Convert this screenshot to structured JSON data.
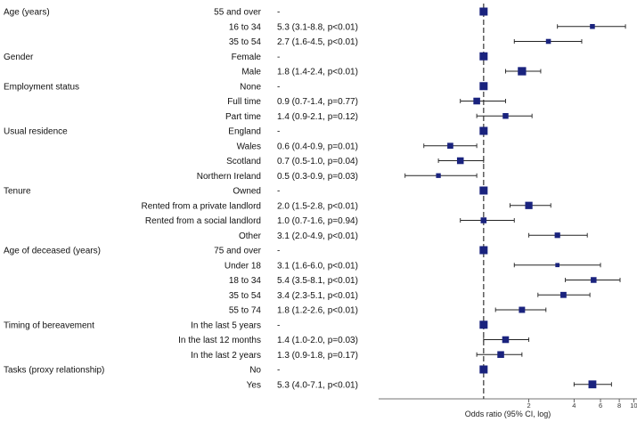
{
  "chart_data": {
    "type": "forest",
    "xlabel": "Odds ratio (95% CI, log)",
    "x_scale": "log",
    "xlim": [
      0.2,
      10.5
    ],
    "reference_line": 1,
    "x_ticks": [
      2,
      4,
      6,
      8,
      10
    ],
    "colors": {
      "marker": "#1a237e",
      "line": "#222222",
      "reference": "#333333"
    },
    "groups": [
      {
        "variable": "Age (years)",
        "rows": [
          {
            "level": "55 and over",
            "label": "-",
            "or": 1,
            "lo": 1,
            "hi": 1,
            "ref": true
          },
          {
            "level": "16 to 34",
            "label": "5.3 (3.1-8.8, p<0.01)",
            "or": 5.3,
            "lo": 3.1,
            "hi": 8.8
          },
          {
            "level": "35 to 54",
            "label": "2.7 (1.6-4.5, p<0.01)",
            "or": 2.7,
            "lo": 1.6,
            "hi": 4.5
          }
        ]
      },
      {
        "variable": "Gender",
        "rows": [
          {
            "level": "Female",
            "label": "-",
            "or": 1,
            "lo": 1,
            "hi": 1,
            "ref": true
          },
          {
            "level": "Male",
            "label": "1.8 (1.4-2.4, p<0.01)",
            "or": 1.8,
            "lo": 1.4,
            "hi": 2.4
          }
        ]
      },
      {
        "variable": "Employment status",
        "rows": [
          {
            "level": "None",
            "label": "-",
            "or": 1,
            "lo": 1,
            "hi": 1,
            "ref": true
          },
          {
            "level": "Full time",
            "label": "0.9 (0.7-1.4, p=0.77)",
            "or": 0.9,
            "lo": 0.7,
            "hi": 1.4
          },
          {
            "level": "Part time",
            "label": "1.4 (0.9-2.1, p=0.12)",
            "or": 1.4,
            "lo": 0.9,
            "hi": 2.1
          }
        ]
      },
      {
        "variable": "Usual residence",
        "rows": [
          {
            "level": "England",
            "label": "-",
            "or": 1,
            "lo": 1,
            "hi": 1,
            "ref": true
          },
          {
            "level": "Wales",
            "label": "0.6 (0.4-0.9, p=0.01)",
            "or": 0.6,
            "lo": 0.4,
            "hi": 0.9
          },
          {
            "level": "Scotland",
            "label": "0.7 (0.5-1.0, p=0.04)",
            "or": 0.7,
            "lo": 0.5,
            "hi": 1.0
          },
          {
            "level": "Northern Ireland",
            "label": "0.5 (0.3-0.9, p=0.03)",
            "or": 0.5,
            "lo": 0.3,
            "hi": 0.9
          }
        ]
      },
      {
        "variable": "Tenure",
        "rows": [
          {
            "level": "Owned",
            "label": "-",
            "or": 1,
            "lo": 1,
            "hi": 1,
            "ref": true
          },
          {
            "level": "Rented from a private landlord",
            "label": "2.0 (1.5-2.8, p<0.01)",
            "or": 2.0,
            "lo": 1.5,
            "hi": 2.8
          },
          {
            "level": "Rented from a social landlord",
            "label": "1.0 (0.7-1.6, p=0.94)",
            "or": 1.0,
            "lo": 0.7,
            "hi": 1.6
          },
          {
            "level": "Other",
            "label": "3.1 (2.0-4.9, p<0.01)",
            "or": 3.1,
            "lo": 2.0,
            "hi": 4.9
          }
        ]
      },
      {
        "variable": "Age of deceased (years)",
        "rows": [
          {
            "level": "75 and over",
            "label": "-",
            "or": 1,
            "lo": 1,
            "hi": 1,
            "ref": true
          },
          {
            "level": "Under 18",
            "label": "3.1 (1.6-6.0, p<0.01)",
            "or": 3.1,
            "lo": 1.6,
            "hi": 6.0
          },
          {
            "level": "18 to 34",
            "label": "5.4 (3.5-8.1, p<0.01)",
            "or": 5.4,
            "lo": 3.5,
            "hi": 8.1
          },
          {
            "level": "35 to 54",
            "label": "3.4 (2.3-5.1, p<0.01)",
            "or": 3.4,
            "lo": 2.3,
            "hi": 5.1
          },
          {
            "level": "55 to 74",
            "label": "1.8 (1.2-2.6, p<0.01)",
            "or": 1.8,
            "lo": 1.2,
            "hi": 2.6
          }
        ]
      },
      {
        "variable": "Timing of bereavement",
        "rows": [
          {
            "level": "In the last 5 years",
            "label": "-",
            "or": 1,
            "lo": 1,
            "hi": 1,
            "ref": true
          },
          {
            "level": "In the last 12 months",
            "label": "1.4 (1.0-2.0, p=0.03)",
            "or": 1.4,
            "lo": 1.0,
            "hi": 2.0
          },
          {
            "level": "In the last 2 years",
            "label": "1.3 (0.9-1.8, p=0.17)",
            "or": 1.3,
            "lo": 0.9,
            "hi": 1.8
          }
        ]
      },
      {
        "variable": "Tasks (proxy relationship)",
        "rows": [
          {
            "level": "No",
            "label": "-",
            "or": 1,
            "lo": 1,
            "hi": 1,
            "ref": true
          },
          {
            "level": "Yes",
            "label": "5.3 (4.0-7.1, p<0.01)",
            "or": 5.3,
            "lo": 4.0,
            "hi": 7.1
          }
        ]
      }
    ]
  }
}
